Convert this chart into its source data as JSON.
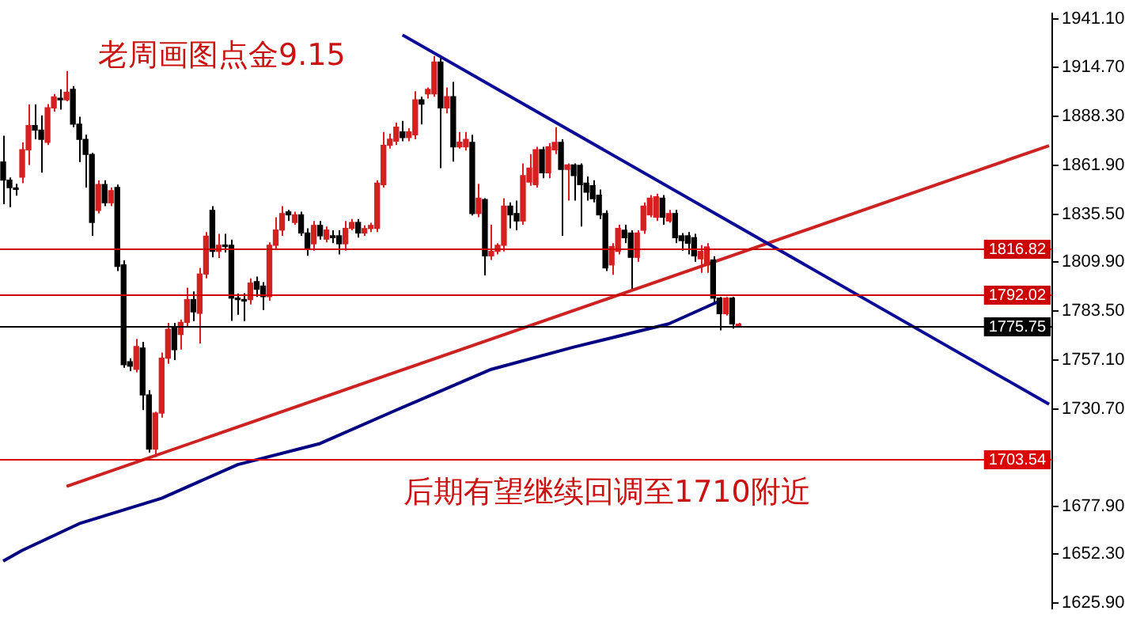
{
  "chart_data": {
    "type": "candlestick",
    "title": "老周画图点金9.15",
    "annotations": [
      "后期有望继续回调至1710附近"
    ],
    "categories": [
      null,
      null,
      null,
      null,
      null,
      null,
      null,
      null,
      null,
      null,
      null,
      null,
      null,
      null,
      null,
      null,
      null,
      null,
      null,
      null,
      null,
      null,
      null,
      null,
      null,
      null,
      null,
      null,
      null,
      null,
      null,
      null,
      null,
      null,
      null,
      null,
      null,
      null,
      null,
      null,
      null,
      null,
      null,
      null,
      null,
      null,
      null,
      null,
      null,
      null,
      null,
      null,
      null,
      null,
      null,
      null,
      null,
      null,
      null,
      null,
      null,
      null,
      null,
      null,
      null,
      null,
      null,
      null,
      null,
      null,
      null,
      null,
      null,
      null,
      null,
      null,
      null,
      null,
      null,
      null,
      null,
      null,
      null,
      null,
      null,
      null,
      null,
      null,
      null,
      null,
      null,
      null,
      null,
      null,
      null,
      null,
      null,
      null,
      null,
      null,
      null,
      null,
      null,
      null,
      null,
      null,
      null,
      null,
      null,
      null,
      null,
      null,
      null,
      null,
      null,
      null,
      null,
      null,
      null,
      null,
      null,
      null,
      null,
      null,
      null,
      null,
      null,
      null,
      null,
      null,
      null,
      null,
      null,
      null,
      null,
      null,
      null,
      null,
      null,
      null,
      null,
      null,
      null,
      null,
      null,
      null,
      null,
      null,
      null,
      null,
      null,
      null,
      null,
      null,
      null,
      null,
      null,
      null,
      null,
      null,
      null,
      null,
      null,
      null,
      null,
      null
    ],
    "ohlc": [
      [
        1863.8,
        1878,
        1841,
        1854
      ],
      [
        1854,
        1855.5,
        1839.5,
        1850
      ],
      [
        1849.2,
        1852,
        1845.6,
        1849
      ],
      [
        1855.6,
        1874.4,
        1852.4,
        1870.4
      ],
      [
        1870.4,
        1894.8,
        1862.2,
        1883.4
      ],
      [
        1883.4,
        1894.8,
        1876,
        1881
      ],
      [
        1881,
        1889,
        1858,
        1876
      ],
      [
        1874.4,
        1895,
        1873,
        1893
      ],
      [
        1893,
        1900.5,
        1891,
        1898.9
      ],
      [
        1898,
        1903,
        1892,
        1897.3
      ],
      [
        1897.3,
        1912.8,
        1896.5,
        1901.4
      ],
      [
        1903,
        1904.7,
        1882.6,
        1884.2
      ],
      [
        1884.2,
        1888.2,
        1863.8,
        1876
      ],
      [
        1876,
        1878.5,
        1850,
        1867.9
      ],
      [
        1867.9,
        1868.7,
        1824,
        1831.2
      ],
      [
        1837.7,
        1854,
        1836,
        1851.6
      ],
      [
        1851.6,
        1854,
        1840,
        1841.8
      ],
      [
        1841.8,
        1850,
        1840,
        1848.3
      ],
      [
        1850,
        1851.6,
        1805,
        1807.5
      ],
      [
        1808.3,
        1810.8,
        1752.8,
        1754.5
      ],
      [
        1756.1,
        1758,
        1751,
        1753.7
      ],
      [
        1752,
        1768.4,
        1750.4,
        1764.3
      ],
      [
        1763.5,
        1766.8,
        1730,
        1738.2
      ],
      [
        1738.2,
        1740.7,
        1707.2,
        1709
      ],
      [
        1709,
        1729.2,
        1704.7,
        1728.4
      ],
      [
        1728.4,
        1761,
        1726,
        1758
      ],
      [
        1758,
        1777,
        1755,
        1773.6
      ],
      [
        1774.9,
        1777,
        1757,
        1762.6
      ],
      [
        1770.8,
        1778.9,
        1762.6,
        1777.3
      ],
      [
        1777.3,
        1796,
        1774.9,
        1789.6
      ],
      [
        1789.6,
        1794,
        1778,
        1783
      ],
      [
        1782.2,
        1806.7,
        1766,
        1803.4
      ],
      [
        1803.4,
        1826,
        1801,
        1823.8
      ],
      [
        1837.7,
        1840,
        1812.4,
        1815.6
      ],
      [
        1815.6,
        1825,
        1812,
        1818.9
      ],
      [
        1818.9,
        1825,
        1815,
        1818.2
      ],
      [
        1818.9,
        1822,
        1778.1,
        1790.4
      ],
      [
        1790.4,
        1792.8,
        1781.4,
        1789.6
      ],
      [
        1789.6,
        1793,
        1778,
        1788.8
      ],
      [
        1789.6,
        1801,
        1787,
        1798.5
      ],
      [
        1799.3,
        1802,
        1791,
        1795.2
      ],
      [
        1796.9,
        1799,
        1784,
        1791.2
      ],
      [
        1791.2,
        1820.5,
        1789,
        1818.9
      ],
      [
        1818.9,
        1834,
        1817,
        1827.1
      ],
      [
        1827.1,
        1840,
        1824,
        1836
      ],
      [
        1836.9,
        1838,
        1832,
        1835.3
      ],
      [
        1831.2,
        1837,
        1830,
        1835.3
      ],
      [
        1835.3,
        1837,
        1824,
        1825.5
      ],
      [
        1825.5,
        1828,
        1813.2,
        1817.3
      ],
      [
        1819.7,
        1832,
        1816,
        1829.6
      ],
      [
        1829.6,
        1832,
        1822,
        1824
      ],
      [
        1822.2,
        1829,
        1820.5,
        1827.1
      ],
      [
        1824,
        1827,
        1820,
        1823
      ],
      [
        1824,
        1827,
        1814,
        1819.7
      ],
      [
        1819.7,
        1832,
        1816,
        1828
      ],
      [
        1828,
        1833,
        1827,
        1831.2
      ],
      [
        1831.2,
        1833,
        1823,
        1825.5
      ],
      [
        1825.5,
        1829.6,
        1824,
        1827.9
      ],
      [
        1827.9,
        1831,
        1826,
        1829.6
      ],
      [
        1828,
        1854,
        1826,
        1852.4
      ],
      [
        1851.6,
        1880,
        1850,
        1872.8
      ],
      [
        1872.8,
        1879,
        1871,
        1876.1
      ],
      [
        1875,
        1885,
        1873,
        1882.6
      ],
      [
        1880,
        1886,
        1875,
        1877
      ],
      [
        1877,
        1882,
        1875,
        1880
      ],
      [
        1878.5,
        1902,
        1876,
        1897.3
      ],
      [
        1897.3,
        1899,
        1884,
        1895
      ],
      [
        1900.5,
        1904,
        1898,
        1903
      ],
      [
        1900.5,
        1921,
        1899,
        1917.7
      ],
      [
        1917.7,
        1921,
        1860.5,
        1893
      ],
      [
        1893,
        1904,
        1890,
        1899
      ],
      [
        1899,
        1907,
        1864,
        1872
      ],
      [
        1872,
        1880,
        1871,
        1874.5
      ],
      [
        1872,
        1880,
        1870,
        1876
      ],
      [
        1874.4,
        1878.5,
        1835,
        1836
      ],
      [
        1836,
        1852,
        1834,
        1844.3
      ],
      [
        1843.5,
        1844.3,
        1802.6,
        1813.2
      ],
      [
        1813.2,
        1830,
        1811,
        1815.6
      ],
      [
        1815.6,
        1820,
        1814,
        1818.9
      ],
      [
        1818.9,
        1844.3,
        1815.6,
        1840
      ],
      [
        1840,
        1842,
        1828,
        1835.3
      ],
      [
        1836,
        1843,
        1827,
        1832
      ],
      [
        1832,
        1863,
        1830,
        1856.5
      ],
      [
        1853,
        1868,
        1851,
        1860.5
      ],
      [
        1851.6,
        1872,
        1850,
        1870.4
      ],
      [
        1870.4,
        1872,
        1855,
        1858
      ],
      [
        1858,
        1874,
        1855,
        1872
      ],
      [
        1870.4,
        1882.6,
        1868,
        1874.4
      ],
      [
        1874.4,
        1876,
        1824,
        1859.8
      ],
      [
        1859.8,
        1863,
        1843,
        1862.2
      ],
      [
        1862.2,
        1863,
        1843,
        1856.5
      ],
      [
        1862,
        1863,
        1829,
        1851.6
      ],
      [
        1852.4,
        1856,
        1843,
        1847.5
      ],
      [
        1851,
        1854,
        1842,
        1844
      ],
      [
        1845.9,
        1849,
        1833,
        1835.3
      ],
      [
        1836,
        1837.7,
        1805,
        1806.7
      ],
      [
        1808.3,
        1820,
        1803,
        1818.2
      ],
      [
        1815.6,
        1830,
        1814,
        1828
      ],
      [
        1827,
        1830,
        1820,
        1823
      ],
      [
        1825.5,
        1827,
        1795,
        1812.4
      ],
      [
        1812.4,
        1827,
        1810,
        1825.5
      ],
      [
        1827,
        1842,
        1825,
        1840
      ],
      [
        1835.3,
        1846,
        1834,
        1844.3
      ],
      [
        1834,
        1846.7,
        1832,
        1845
      ],
      [
        1844.3,
        1846,
        1830,
        1834
      ],
      [
        1832,
        1838,
        1831,
        1836
      ],
      [
        1836,
        1838,
        1820,
        1823
      ],
      [
        1824,
        1825.5,
        1816,
        1821.4
      ],
      [
        1824,
        1826,
        1814,
        1820
      ],
      [
        1823,
        1825,
        1810,
        1813.2
      ],
      [
        1811.6,
        1819,
        1804,
        1815.6
      ],
      [
        1808.3,
        1820,
        1804,
        1818
      ],
      [
        1811,
        1813,
        1788,
        1790.4
      ],
      [
        1790.4,
        1791,
        1773,
        1782
      ],
      [
        1782,
        1791,
        1781,
        1790.4
      ],
      [
        1790.4,
        1791,
        1774,
        1776.5
      ],
      [
        1775.5,
        1777,
        1774.5,
        1775.75
      ],
      null,
      null,
      null,
      null,
      null,
      null,
      null,
      null,
      null,
      null,
      null,
      null,
      null,
      null,
      null,
      null,
      null,
      null,
      null,
      null,
      null,
      null,
      null,
      null,
      null,
      null,
      null,
      null,
      null,
      null,
      null,
      null,
      null,
      null,
      null,
      null,
      null,
      null,
      null,
      null,
      null,
      null,
      null,
      null,
      null,
      null,
      null,
      null,
      null
    ],
    "colors": [
      "#000000",
      "#000000",
      "#000000",
      "#d61f1f",
      "#d61f1f",
      "#000000",
      "#000000",
      "#d61f1f",
      "#d61f1f",
      "#000000",
      "#d61f1f",
      "#000000",
      "#000000",
      "#000000",
      "#000000",
      "#d61f1f",
      "#000000",
      "#d61f1f",
      "#000000",
      "#000000",
      "#000000",
      "#d61f1f",
      "#000000",
      "#000000",
      "#d61f1f",
      "#d61f1f",
      "#d61f1f",
      "#000000",
      "#d61f1f",
      "#d61f1f",
      "#000000",
      "#d61f1f",
      "#d61f1f",
      "#000000",
      "#d61f1f",
      "#000000",
      "#000000",
      "#000000",
      "#000000",
      "#d61f1f",
      "#000000",
      "#000000",
      "#d61f1f",
      "#d61f1f",
      "#d61f1f",
      "#000000",
      "#d61f1f",
      "#000000",
      "#000000",
      "#d61f1f",
      "#000000",
      "#d61f1f",
      "#000000",
      "#000000",
      "#d61f1f",
      "#d61f1f",
      "#000000",
      "#d61f1f",
      "#d61f1f",
      "#d61f1f",
      "#d61f1f",
      "#d61f1f",
      "#d61f1f",
      "#000000",
      "#d61f1f",
      "#d61f1f",
      "#000000",
      "#d61f1f",
      "#d61f1f",
      "#000000",
      "#d61f1f",
      "#000000",
      "#d61f1f",
      "#d61f1f",
      "#000000",
      "#d61f1f",
      "#000000",
      "#d61f1f",
      "#d61f1f",
      "#d61f1f",
      "#000000",
      "#000000",
      "#d61f1f",
      "#d61f1f",
      "#d61f1f",
      "#000000",
      "#d61f1f",
      "#d61f1f",
      "#000000",
      "#d61f1f",
      "#000000",
      "#000000",
      "#000000",
      "#000000",
      "#000000",
      "#000000",
      "#d61f1f",
      "#d61f1f",
      "#000000",
      "#000000",
      "#d61f1f",
      "#d61f1f",
      "#d61f1f",
      "#d61f1f",
      "#000000",
      "#d61f1f",
      "#000000",
      "#000000",
      "#000000",
      "#000000",
      "#d61f1f",
      "#d61f1f",
      "#000000",
      "#000000",
      "#d61f1f",
      "#000000",
      "#d61f1f",
      null,
      null,
      null,
      null,
      null,
      null,
      null,
      null,
      null,
      null,
      null,
      null,
      null,
      null,
      null,
      null,
      null,
      null,
      null,
      null,
      null,
      null,
      null,
      null,
      null,
      null,
      null,
      null,
      null,
      null,
      null,
      null,
      null,
      null,
      null,
      null,
      null,
      null,
      null,
      null,
      null,
      null,
      null,
      null,
      null,
      null,
      null,
      null,
      null
    ],
    "series": [
      {
        "type": "line",
        "color": "#0c0c96",
        "values": [
          null,
          null,
          null,
          null,
          null,
          null,
          null,
          null,
          null,
          null,
          null,
          null,
          null,
          null,
          null,
          null,
          null,
          null,
          null,
          null,
          null,
          null,
          null,
          null,
          null,
          null,
          null,
          null,
          null,
          null,
          null,
          null,
          null,
          null,
          null,
          null,
          null,
          null,
          null,
          null,
          null,
          null,
          null,
          null,
          null,
          null,
          null,
          null,
          null,
          null,
          null,
          null,
          null,
          null,
          null,
          null,
          null,
          null,
          null,
          null,
          null,
          null,
          null,
          1932.3,
          null,
          null,
          null,
          null,
          null,
          null,
          null,
          null,
          null,
          null,
          null,
          null,
          null,
          null,
          null,
          null,
          null,
          null,
          null,
          null,
          null,
          null,
          null,
          null,
          null,
          null,
          null,
          null,
          null,
          null,
          null,
          null,
          null,
          null,
          null,
          null,
          null,
          null,
          null,
          null,
          null,
          null,
          null,
          null,
          null,
          null,
          null,
          null,
          null,
          null,
          null,
          null,
          null,
          null,
          null,
          null,
          null,
          null,
          null,
          null,
          null,
          null,
          null,
          null,
          null,
          null,
          null,
          null,
          null,
          null,
          null,
          null,
          null,
          null,
          null,
          null,
          null,
          null,
          null,
          null,
          null,
          null,
          null,
          null,
          null,
          null,
          null,
          null,
          null,
          null,
          null,
          null,
          null,
          null,
          null,
          null,
          null,
          null,
          null,
          null,
          null,
          1733.2
        ]
      },
      {
        "type": "line",
        "color": "#cc2222",
        "values": [
          null,
          null,
          null,
          null,
          null,
          null,
          null,
          null,
          null,
          null,
          1688.9,
          null,
          null,
          null,
          null,
          null,
          null,
          null,
          null,
          null,
          null,
          null,
          null,
          null,
          null,
          null,
          null,
          null,
          null,
          null,
          null,
          null,
          null,
          null,
          null,
          null,
          null,
          null,
          null,
          null,
          null,
          null,
          null,
          null,
          null,
          null,
          null,
          null,
          null,
          null,
          null,
          null,
          null,
          null,
          null,
          null,
          null,
          null,
          null,
          null,
          null,
          null,
          null,
          null,
          null,
          null,
          null,
          null,
          null,
          null,
          null,
          null,
          null,
          null,
          null,
          null,
          null,
          null,
          null,
          null,
          null,
          null,
          null,
          null,
          null,
          null,
          null,
          null,
          null,
          null,
          null,
          null,
          null,
          null,
          null,
          null,
          null,
          null,
          null,
          null,
          null,
          null,
          null,
          null,
          null,
          null,
          null,
          null,
          null,
          null,
          null,
          null,
          null,
          null,
          null,
          null,
          null,
          null,
          null,
          null,
          null,
          null,
          null,
          null,
          null,
          null,
          null,
          null,
          null,
          null,
          null,
          null,
          null,
          null,
          null,
          null,
          null,
          null,
          null,
          null,
          null,
          null,
          null,
          null,
          null,
          null,
          null,
          null,
          null,
          null,
          null,
          null,
          null,
          null,
          null,
          null,
          null,
          null,
          null,
          null,
          null,
          null,
          null,
          null,
          null,
          1872.6
        ]
      },
      {
        "type": "line",
        "color": "#000080",
        "values": [
          1648.6,
          null,
          null,
          1654.4,
          null,
          null,
          null,
          null,
          null,
          null,
          null,
          null,
          1668.8,
          null,
          null,
          null,
          null,
          null,
          null,
          null,
          null,
          null,
          null,
          null,
          null,
          1682.5,
          null,
          null,
          null,
          null,
          null,
          null,
          null,
          null,
          null,
          null,
          null,
          1700.6,
          null,
          null,
          null,
          null,
          null,
          null,
          null,
          null,
          null,
          null,
          null,
          null,
          1712,
          null,
          null,
          null,
          null,
          null,
          null,
          null,
          null,
          null,
          null,
          null,
          1730,
          null,
          null,
          null,
          null,
          null,
          null,
          null,
          null,
          null,
          null,
          null,
          null,
          null,
          null,
          1752,
          null,
          null,
          null,
          null,
          null,
          null,
          null,
          null,
          null,
          null,
          null,
          null,
          1764,
          null,
          null,
          null,
          null,
          null,
          null,
          null,
          null,
          null,
          null,
          null,
          null,
          null,
          null,
          1776.5,
          null,
          null,
          null,
          null,
          null,
          null,
          null,
          1788.8,
          null,
          null,
          null,
          null,
          null,
          null,
          null,
          null,
          null,
          null,
          null,
          null,
          null,
          null,
          null,
          null,
          null,
          null,
          null,
          null,
          null,
          null,
          null,
          null,
          null,
          null,
          null,
          null,
          null,
          null,
          null,
          null,
          null,
          null,
          null,
          null,
          null,
          null,
          null,
          null,
          null,
          null,
          null,
          null,
          null,
          null,
          null,
          null,
          null,
          null,
          null,
          null
        ]
      }
    ],
    "ref_lines": [
      {
        "axis": "y",
        "value": 1816.82,
        "label": "1816.82",
        "color": "#cc0000"
      },
      {
        "axis": "y",
        "value": 1792.02,
        "label": "1792.02",
        "color": "#cc0000"
      },
      {
        "axis": "y",
        "value": 1775.75,
        "label": "1775.75",
        "color": "#000000"
      },
      {
        "axis": "y",
        "value": 1703.54,
        "label": "1703.54",
        "color": "#dd0000"
      }
    ],
    "ylim": [
      1623.1,
      1943.8
    ],
    "yticks": [
      {
        "value": 1941.1,
        "label": "1941.10"
      },
      {
        "value": 1914.7,
        "label": "1914.70"
      },
      {
        "value": 1888.3,
        "label": "1888.30"
      },
      {
        "value": 1861.9,
        "label": "1861.90"
      },
      {
        "value": 1835.5,
        "label": "1835.50"
      },
      {
        "value": 1809.9,
        "label": "1809.90"
      },
      {
        "value": 1783.5,
        "label": "1783.50"
      },
      {
        "value": 1757.1,
        "label": "1757.10"
      },
      {
        "value": 1730.7,
        "label": "1730.70"
      },
      {
        "value": 1677.9,
        "label": "1677.90"
      },
      {
        "value": 1652.3,
        "label": "1652.30"
      },
      {
        "value": 1625.9,
        "label": "1625.90"
      }
    ],
    "tick_labels": "y",
    "legend": false
  }
}
